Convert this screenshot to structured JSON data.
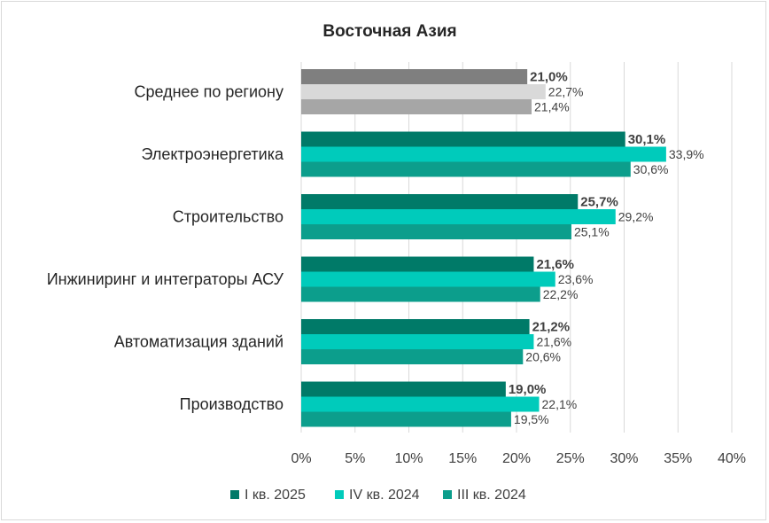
{
  "chart_data": {
    "type": "bar",
    "orientation": "horizontal",
    "title": "Восточная Азия",
    "categories": [
      "Среднее по региону",
      "Электроэнергетика",
      "Строительство",
      "Инжиниринг и интеграторы АСУ",
      "Автоматизация зданий",
      "Производство"
    ],
    "series": [
      {
        "name": "I кв. 2025",
        "color": "#007a68",
        "values": [
          21.0,
          30.1,
          25.7,
          21.6,
          21.2,
          19.0
        ],
        "labels": [
          "21,0%",
          "30,1%",
          "25,7%",
          "21,6%",
          "21,2%",
          "19,0%"
        ],
        "label_bold": true
      },
      {
        "name": "IV кв. 2024",
        "color": "#00cbbb",
        "values": [
          22.7,
          33.9,
          29.2,
          23.6,
          21.6,
          22.1
        ],
        "labels": [
          "22,7%",
          "33,9%",
          "29,2%",
          "23,6%",
          "21,6%",
          "22,1%"
        ],
        "label_bold": false
      },
      {
        "name": "III кв. 2024",
        "color": "#0c9e8c",
        "values": [
          21.4,
          30.6,
          25.1,
          22.2,
          20.6,
          19.5
        ],
        "labels": [
          "21,4%",
          "30,6%",
          "25,1%",
          "22,2%",
          "20,6%",
          "19,5%"
        ],
        "label_bold": false
      }
    ],
    "first_category_colors": [
      "#7f7f7f",
      "#d9d9d9",
      "#a6a6a6"
    ],
    "xlim": [
      0,
      40
    ],
    "x_ticks": [
      "0%",
      "5%",
      "10%",
      "15%",
      "20%",
      "25%",
      "30%",
      "35%",
      "40%"
    ],
    "grid": true,
    "legend_position": "bottom"
  }
}
